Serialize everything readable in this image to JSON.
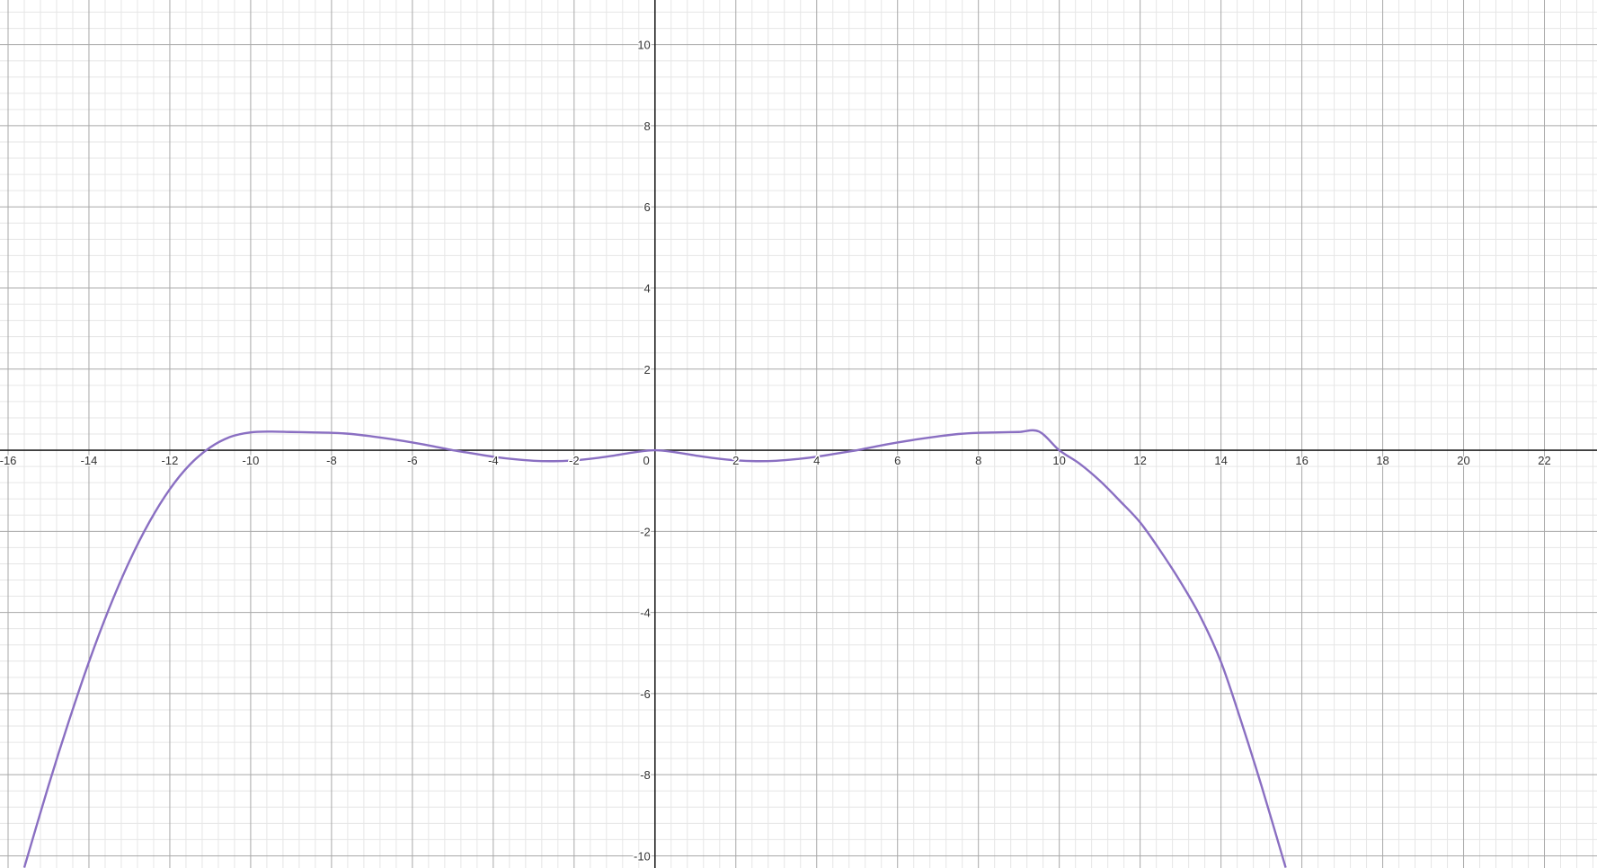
{
  "chart_data": {
    "type": "line",
    "xlim": [
      -16.2,
      23.3
    ],
    "ylim": [
      -10.3,
      11.1
    ],
    "grid": true,
    "major_grid_step": 2,
    "minor_grid_step": 0.4,
    "x_ticks": [
      -16,
      -14,
      -12,
      -10,
      -8,
      -6,
      -4,
      -2,
      0,
      2,
      4,
      6,
      8,
      10,
      12,
      14,
      16,
      18,
      20,
      22
    ],
    "x_tick_labels": [
      "-16",
      "-14",
      "-12",
      "-10",
      "-8",
      "-6",
      "-4",
      "-2",
      "0",
      "2",
      "4",
      "6",
      "8",
      "10",
      "12",
      "14",
      "16",
      "18",
      "20",
      "22"
    ],
    "y_ticks": [
      10,
      8,
      6,
      4,
      2,
      -2,
      -4,
      -6,
      -8,
      -10
    ],
    "y_tick_labels": [
      "10",
      "8",
      "6",
      "4",
      "2",
      "-2",
      "-4",
      "-6",
      "-8",
      "-10"
    ],
    "series": [
      {
        "color": "#8a6fc2",
        "x": [
          -15.6,
          -15,
          -14.5,
          -14,
          -13.5,
          -13,
          -12.5,
          -12,
          -11.5,
          -11,
          -10.5,
          -10,
          -9.5,
          -9,
          -8.5,
          -8,
          -7.5,
          -7,
          -6.5,
          -6,
          -5.5,
          -5,
          -4.5,
          -4,
          -3.5,
          -3,
          -2.5,
          -2,
          -1.5,
          -1,
          -0.5,
          0,
          0.5,
          1,
          1.5,
          2,
          2.5,
          3,
          3.5,
          4,
          4.5,
          5,
          5.5,
          6,
          6.5,
          7,
          7.5,
          8,
          8.5,
          9,
          9.5,
          10,
          10.5,
          11,
          11.5,
          12,
          12.5,
          13,
          13.5,
          14,
          14.5,
          15,
          15.6
        ],
        "y": [
          -10.29,
          -8.27,
          -6.69,
          -5.22,
          -3.9,
          -2.74,
          -1.76,
          -0.96,
          -0.35,
          0.07,
          0.33,
          0.44,
          0.46,
          0.45,
          0.44,
          0.43,
          0.4,
          0.34,
          0.27,
          0.19,
          0.1,
          0.0,
          -0.08,
          -0.16,
          -0.22,
          -0.26,
          -0.27,
          -0.25,
          -0.2,
          -0.13,
          -0.05,
          0.0,
          -0.05,
          -0.13,
          -0.2,
          -0.25,
          -0.27,
          -0.26,
          -0.22,
          -0.16,
          -0.08,
          0.0,
          0.1,
          0.19,
          0.27,
          0.34,
          0.4,
          0.43,
          0.44,
          0.45,
          0.46,
          0.0,
          -0.33,
          -0.75,
          -1.25,
          -1.78,
          -2.48,
          -3.25,
          -4.12,
          -5.22,
          -6.69,
          -8.27,
          -10.29
        ]
      }
    ]
  }
}
